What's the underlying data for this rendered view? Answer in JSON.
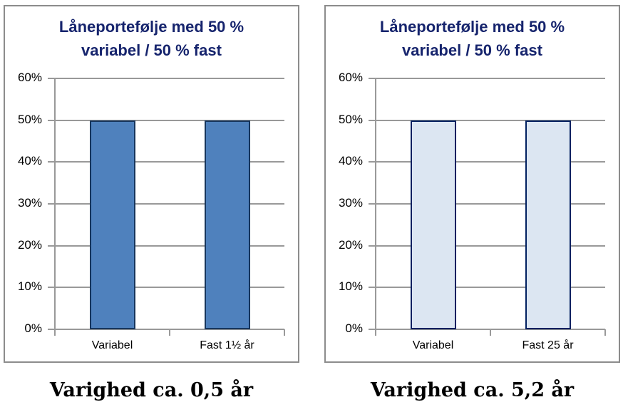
{
  "style": {
    "title_color": "#16246d",
    "grid_color": "#999999",
    "panel_border_color": "#8c8c8c",
    "axis_label_color": "#000000"
  },
  "chart_data": [
    {
      "type": "bar",
      "title": "Låneportefølje med 50 % variabel / 50 % fast",
      "title_lines": [
        "Låneportefølje med 50 %",
        "variabel / 50 % fast"
      ],
      "categories": [
        "Variabel",
        "Fast 1½ år"
      ],
      "values": [
        50,
        50
      ],
      "ylim": [
        0,
        60
      ],
      "ytick_step": 10,
      "ytick_labels": [
        "0%",
        "10%",
        "20%",
        "30%",
        "40%",
        "50%",
        "60%"
      ],
      "grid": true,
      "legend": "none",
      "bar_fill": "#4f81bd",
      "bar_border": "#17365d",
      "caption": "Varighed ca. 0,5 år"
    },
    {
      "type": "bar",
      "title": "Låneportefølje med 50 % variabel / 50 % fast",
      "title_lines": [
        "Låneportefølje med 50 %",
        "variabel / 50 % fast"
      ],
      "categories": [
        "Variabel",
        "Fast 25 år"
      ],
      "values": [
        50,
        50
      ],
      "ylim": [
        0,
        60
      ],
      "ytick_step": 10,
      "ytick_labels": [
        "0%",
        "10%",
        "20%",
        "30%",
        "40%",
        "50%",
        "60%"
      ],
      "grid": true,
      "legend": "none",
      "bar_fill": "#dce6f2",
      "bar_border": "#002060",
      "caption": "Varighed ca. 5,2 år"
    }
  ]
}
